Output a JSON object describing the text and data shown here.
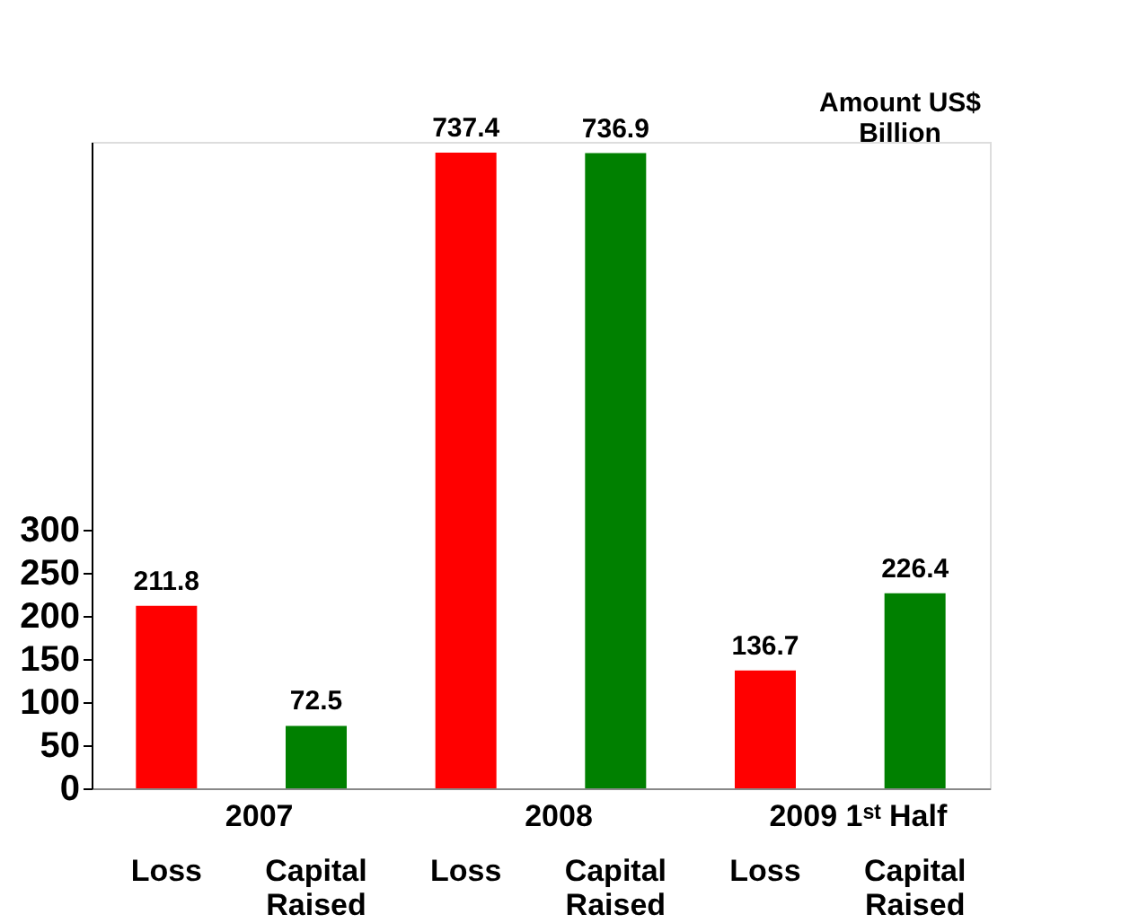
{
  "chart_data": {
    "type": "bar",
    "ylabel": "Amount US$ Billion",
    "categories": [
      "Loss",
      "Capital Raised",
      "Loss",
      "Capital Raised",
      "Loss",
      "Capital Raised"
    ],
    "values": [
      211.8,
      72.5,
      737.4,
      736.9,
      136.7,
      226.4
    ],
    "colors": [
      "#ff0000",
      "#008000",
      "#ff0000",
      "#008000",
      "#ff0000",
      "#008000"
    ],
    "annotations": [
      "2007",
      "2008",
      "2009 1ˢᵗ Half"
    ],
    "ylim": [
      0,
      750
    ],
    "yticks": [
      0,
      50,
      100,
      150,
      200,
      250,
      300
    ],
    "data_labels": true,
    "grid": false
  }
}
